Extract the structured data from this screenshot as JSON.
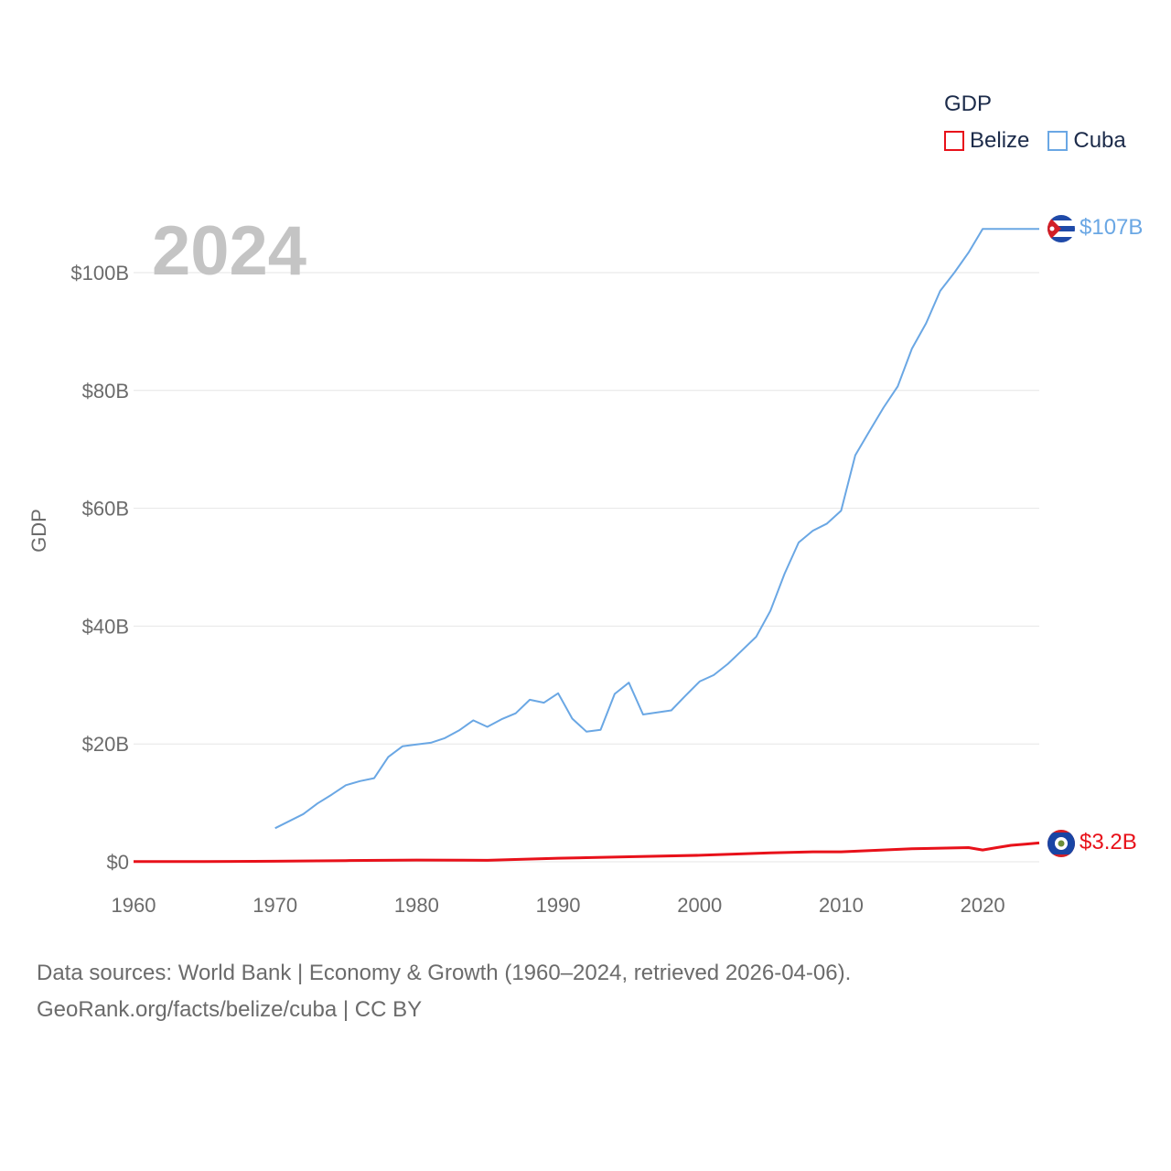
{
  "legend": {
    "title": "GDP",
    "items": [
      {
        "label": "Belize",
        "color": "#e8111a"
      },
      {
        "label": "Cuba",
        "color": "#6aa7e4"
      }
    ]
  },
  "footer": {
    "line1": "Data sources: World Bank | Economy & Growth (1960–2024, retrieved 2026-04-06).",
    "line2": "GeoRank.org/facts/belize/cuba | CC BY"
  },
  "chart_data": {
    "type": "line",
    "title": "GDP",
    "year_label": "2024",
    "xlabel": "",
    "ylabel": "GDP",
    "xlim": [
      1960,
      2024
    ],
    "ylim": [
      0,
      110
    ],
    "x_ticks": [
      1960,
      1970,
      1980,
      1990,
      2000,
      2010,
      2020
    ],
    "y_ticks": [
      {
        "value": 0,
        "label": "$0"
      },
      {
        "value": 20,
        "label": "$20B"
      },
      {
        "value": 40,
        "label": "$40B"
      },
      {
        "value": 60,
        "label": "$60B"
      },
      {
        "value": 80,
        "label": "$80B"
      },
      {
        "value": 100,
        "label": "$100B"
      }
    ],
    "units": "billion USD",
    "series": [
      {
        "name": "Belize",
        "color": "#e8111a",
        "end_label": "$3.2B",
        "flag_icon": "belize-flag-icon",
        "points": [
          [
            1960,
            0.03
          ],
          [
            1965,
            0.05
          ],
          [
            1970,
            0.1
          ],
          [
            1975,
            0.2
          ],
          [
            1980,
            0.3
          ],
          [
            1985,
            0.25
          ],
          [
            1990,
            0.6
          ],
          [
            1995,
            0.85
          ],
          [
            2000,
            1.1
          ],
          [
            2005,
            1.5
          ],
          [
            2008,
            1.7
          ],
          [
            2010,
            1.7
          ],
          [
            2015,
            2.2
          ],
          [
            2019,
            2.4
          ],
          [
            2020,
            2.0
          ],
          [
            2021,
            2.4
          ],
          [
            2022,
            2.8
          ],
          [
            2023,
            3.0
          ],
          [
            2024,
            3.2
          ]
        ]
      },
      {
        "name": "Cuba",
        "color": "#6aa7e4",
        "end_label": "$107B",
        "flag_icon": "cuba-flag-icon",
        "points": [
          [
            1970,
            5.7
          ],
          [
            1972,
            8.1
          ],
          [
            1973,
            9.9
          ],
          [
            1974,
            11.4
          ],
          [
            1975,
            13.0
          ],
          [
            1976,
            13.7
          ],
          [
            1977,
            14.2
          ],
          [
            1978,
            17.8
          ],
          [
            1979,
            19.6
          ],
          [
            1980,
            19.9
          ],
          [
            1981,
            20.2
          ],
          [
            1982,
            21.0
          ],
          [
            1983,
            22.3
          ],
          [
            1984,
            24.0
          ],
          [
            1985,
            22.9
          ],
          [
            1986,
            24.2
          ],
          [
            1987,
            25.2
          ],
          [
            1988,
            27.5
          ],
          [
            1989,
            27.0
          ],
          [
            1990,
            28.6
          ],
          [
            1991,
            24.3
          ],
          [
            1992,
            22.1
          ],
          [
            1993,
            22.4
          ],
          [
            1994,
            28.5
          ],
          [
            1995,
            30.4
          ],
          [
            1996,
            25.0
          ],
          [
            1998,
            25.7
          ],
          [
            1999,
            28.2
          ],
          [
            2000,
            30.6
          ],
          [
            2001,
            31.7
          ],
          [
            2002,
            33.6
          ],
          [
            2003,
            35.9
          ],
          [
            2004,
            38.2
          ],
          [
            2005,
            42.6
          ],
          [
            2006,
            48.9
          ],
          [
            2007,
            54.2
          ],
          [
            2008,
            56.2
          ],
          [
            2009,
            57.4
          ],
          [
            2010,
            59.6
          ],
          [
            2011,
            69.0
          ],
          [
            2012,
            73.1
          ],
          [
            2013,
            77.1
          ],
          [
            2014,
            80.7
          ],
          [
            2015,
            87.1
          ],
          [
            2016,
            91.4
          ],
          [
            2017,
            96.9
          ],
          [
            2018,
            100.0
          ],
          [
            2019,
            103.4
          ],
          [
            2020,
            107.4
          ],
          [
            2024,
            107.4
          ]
        ]
      }
    ]
  }
}
